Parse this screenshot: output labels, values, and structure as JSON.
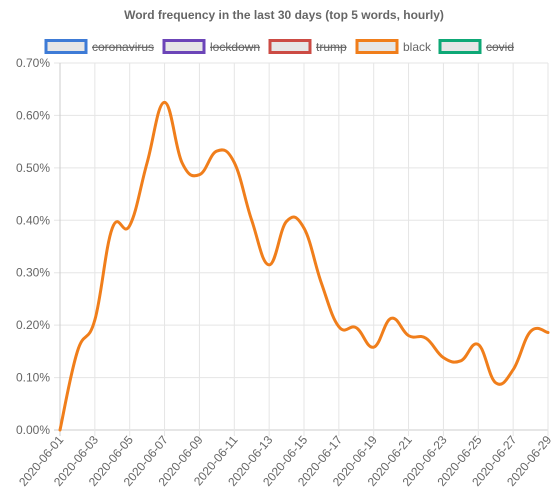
{
  "chart_data": {
    "type": "line",
    "title": "Word frequency in the last 30 days (top 5 words, hourly)",
    "legend": {
      "position": "top",
      "items": [
        {
          "name": "coronavirus",
          "color": "#3e7bd6",
          "hidden": true
        },
        {
          "name": "lockdown",
          "color": "#6c45b8",
          "hidden": true
        },
        {
          "name": "trump",
          "color": "#cc4b44",
          "hidden": true
        },
        {
          "name": "black",
          "color": "#f07e1b",
          "hidden": false
        },
        {
          "name": "covid",
          "color": "#0ea876",
          "hidden": true
        }
      ]
    },
    "y_ticks": [
      "0.00%",
      "0.10%",
      "0.20%",
      "0.30%",
      "0.40%",
      "0.50%",
      "0.60%",
      "0.70%"
    ],
    "ylim": [
      0,
      0.7
    ],
    "grid": true,
    "x_ticks": [
      "2020-06-01",
      "2020-06-03",
      "2020-06-05",
      "2020-06-07",
      "2020-06-09",
      "2020-06-11",
      "2020-06-13",
      "2020-06-15",
      "2020-06-17",
      "2020-06-19",
      "2020-06-21",
      "2020-06-23",
      "2020-06-25",
      "2020-06-27",
      "2020-06-29"
    ],
    "series": [
      {
        "name": "black",
        "color": "#f07e1b",
        "points": [
          {
            "x": "2020-06-01",
            "y": 0.0
          },
          {
            "x": "2020-06-02",
            "y": 0.15
          },
          {
            "x": "2020-06-03",
            "y": 0.21
          },
          {
            "x": "2020-06-04",
            "y": 0.385
          },
          {
            "x": "2020-06-05",
            "y": 0.39
          },
          {
            "x": "2020-06-06",
            "y": 0.51
          },
          {
            "x": "2020-06-07",
            "y": 0.625
          },
          {
            "x": "2020-06-08",
            "y": 0.51
          },
          {
            "x": "2020-06-09",
            "y": 0.487
          },
          {
            "x": "2020-06-10",
            "y": 0.532
          },
          {
            "x": "2020-06-11",
            "y": 0.51
          },
          {
            "x": "2020-06-12",
            "y": 0.4
          },
          {
            "x": "2020-06-13",
            "y": 0.315
          },
          {
            "x": "2020-06-14",
            "y": 0.398
          },
          {
            "x": "2020-06-15",
            "y": 0.385
          },
          {
            "x": "2020-06-16",
            "y": 0.28
          },
          {
            "x": "2020-06-17",
            "y": 0.197
          },
          {
            "x": "2020-06-18",
            "y": 0.195
          },
          {
            "x": "2020-06-19",
            "y": 0.158
          },
          {
            "x": "2020-06-20",
            "y": 0.213
          },
          {
            "x": "2020-06-21",
            "y": 0.18
          },
          {
            "x": "2020-06-22",
            "y": 0.175
          },
          {
            "x": "2020-06-23",
            "y": 0.138
          },
          {
            "x": "2020-06-24",
            "y": 0.132
          },
          {
            "x": "2020-06-25",
            "y": 0.163
          },
          {
            "x": "2020-06-26",
            "y": 0.09
          },
          {
            "x": "2020-06-27",
            "y": 0.115
          },
          {
            "x": "2020-06-28",
            "y": 0.188
          },
          {
            "x": "2020-06-29",
            "y": 0.186
          }
        ]
      }
    ]
  }
}
